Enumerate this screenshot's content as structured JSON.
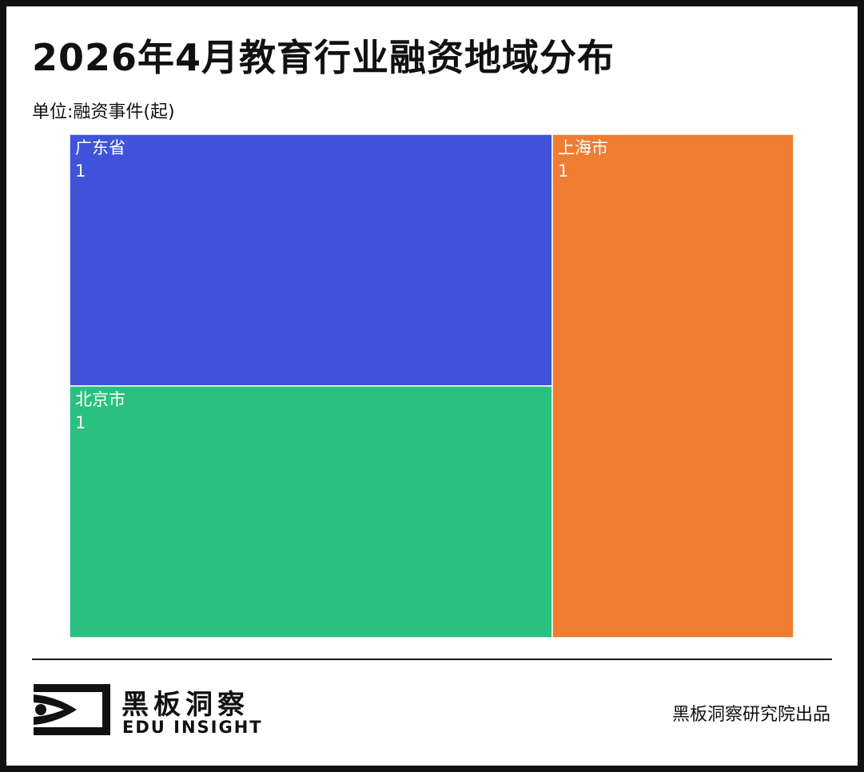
{
  "title": "2026年4月教育行业融资地域分布",
  "unit_label": "单位:融资事件(起)",
  "chart_data": {
    "type": "treemap",
    "title": "2026年4月教育行业融资地域分布",
    "unit": "融资事件(起)",
    "nodes": [
      {
        "name": "广东省",
        "value": 1,
        "color": "#4053DA"
      },
      {
        "name": "北京市",
        "value": 1,
        "color": "#2AC080"
      },
      {
        "name": "上海市",
        "value": 1,
        "color": "#EE7D31"
      }
    ],
    "label_color": "#FFFFFF",
    "border_color": "#FFFFFF"
  },
  "footer": {
    "brand_cn": "黑板洞察",
    "brand_en": "EDU INSIGHT",
    "credit": "黑板洞察研究院出品",
    "logo_icon": "eye-bracket-icon"
  }
}
